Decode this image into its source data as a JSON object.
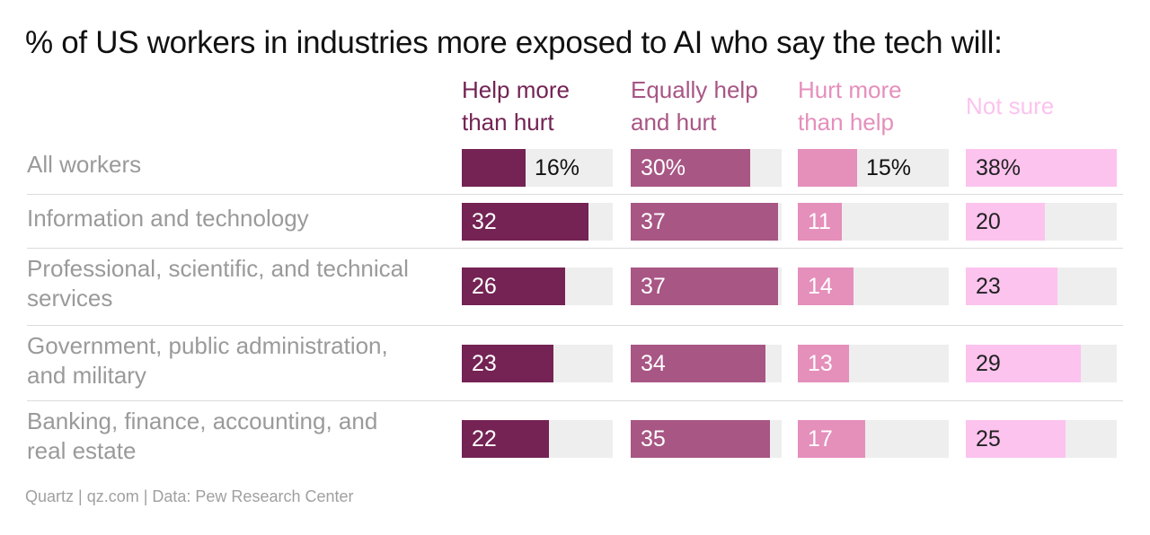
{
  "chart_data": {
    "type": "bar",
    "title": "% of US workers in industries more exposed to AI who say the tech will:",
    "source": "Quartz | qz.com | Data: Pew Research Center",
    "value_max": 38,
    "series": [
      {
        "name": "Help more than hurt",
        "name_lines": [
          "Help more",
          "than hurt"
        ],
        "color": "#742354",
        "values": [
          16,
          32,
          26,
          23,
          22
        ]
      },
      {
        "name": "Equally help and hurt",
        "name_lines": [
          "Equally help",
          "and hurt"
        ],
        "color": "#a85684",
        "values": [
          30,
          37,
          37,
          34,
          35
        ]
      },
      {
        "name": "Hurt more than help",
        "name_lines": [
          "Hurt more",
          "than help"
        ],
        "color": "#e58fbb",
        "values": [
          15,
          11,
          14,
          13,
          17
        ]
      },
      {
        "name": "Not sure",
        "name_lines": [
          "Not sure"
        ],
        "color": "#fcc3ee",
        "values": [
          38,
          20,
          23,
          29,
          25
        ]
      }
    ],
    "categories": [
      {
        "name": "All workers",
        "lines": [
          "All workers"
        ]
      },
      {
        "name": "Information and technology",
        "lines": [
          "Information and technology"
        ]
      },
      {
        "name": "Professional, scientific, and technical services",
        "lines": [
          "Professional, scientific, and technical",
          "services"
        ]
      },
      {
        "name": "Government, public administration, and military",
        "lines": [
          "Government, public administration,",
          "and military"
        ]
      },
      {
        "name": "Banking, finance, accounting, and real estate",
        "lines": [
          "Banking, finance, accounting, and",
          "real estate"
        ]
      }
    ],
    "percent_row": 0
  }
}
